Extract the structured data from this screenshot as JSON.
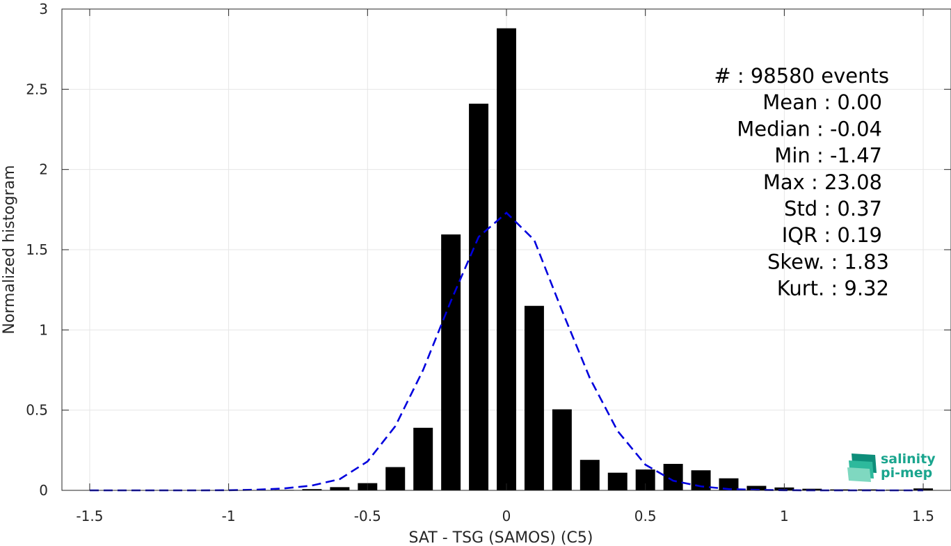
{
  "chart_data": {
    "type": "bar",
    "xlabel": "SAT - TSG (SAMOS) (C5)",
    "ylabel": "Normalized histogram",
    "xlim": [
      -1.6,
      1.6
    ],
    "ylim": [
      0,
      3
    ],
    "xticks": [
      -1.5,
      -1,
      -0.5,
      0,
      0.5,
      1,
      1.5
    ],
    "xtick_labels": [
      "-1.5",
      "-1",
      "-0.5",
      "0",
      "0.5",
      "1",
      "1.5"
    ],
    "yticks": [
      0,
      0.5,
      1,
      1.5,
      2,
      2.5,
      3
    ],
    "ytick_labels": [
      "0",
      "0.5",
      "1",
      "1.5",
      "2",
      "2.5",
      "3"
    ],
    "grid": true,
    "bar_color": "#000000",
    "bin_width": 0.1,
    "bins": {
      "x": [
        -1.5,
        -1.4,
        -1.3,
        -1.2,
        -1.1,
        -1.0,
        -0.9,
        -0.8,
        -0.7,
        -0.6,
        -0.5,
        -0.4,
        -0.3,
        -0.2,
        -0.1,
        0.0,
        0.1,
        0.2,
        0.3,
        0.4,
        0.5,
        0.6,
        0.7,
        0.8,
        0.9,
        1.0,
        1.1,
        1.2,
        1.3,
        1.4,
        1.5
      ],
      "values": [
        0,
        0,
        0,
        0,
        0,
        0,
        0.001,
        0.003,
        0.008,
        0.02,
        0.045,
        0.145,
        0.39,
        1.595,
        2.41,
        2.88,
        1.15,
        0.505,
        0.19,
        0.11,
        0.13,
        0.165,
        0.125,
        0.075,
        0.028,
        0.018,
        0.01,
        0.006,
        0.006,
        0.004,
        0.012
      ]
    },
    "fit_curve": {
      "style": "dashed",
      "color": "#0000dd",
      "x": [
        -1.5,
        -1.4,
        -1.3,
        -1.2,
        -1.1,
        -1.0,
        -0.9,
        -0.8,
        -0.7,
        -0.6,
        -0.5,
        -0.4,
        -0.3,
        -0.2,
        -0.1,
        0.0,
        0.1,
        0.2,
        0.3,
        0.4,
        0.5,
        0.6,
        0.7,
        0.8,
        0.9,
        1.0,
        1.1,
        1.2,
        1.3,
        1.4,
        1.5
      ],
      "y": [
        0,
        0,
        0,
        0,
        0,
        0.001,
        0.004,
        0.012,
        0.03,
        0.07,
        0.18,
        0.4,
        0.75,
        1.18,
        1.58,
        1.73,
        1.56,
        1.12,
        0.7,
        0.37,
        0.16,
        0.06,
        0.025,
        0.008,
        0.003,
        0.001,
        0,
        0,
        0,
        0,
        0
      ]
    },
    "annotations": [
      "#  : 98580 events",
      "Mean : 0.00",
      "Median : -0.04",
      "Min : -1.47",
      "Max : 23.08",
      "Std : 0.37",
      "IQR : 0.19",
      "Skew. : 1.83",
      "Kurt. : 9.32"
    ]
  },
  "logo": {
    "line1": "salinity",
    "line2": "pi-mep"
  }
}
